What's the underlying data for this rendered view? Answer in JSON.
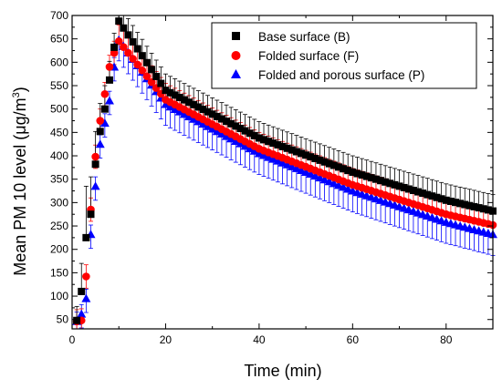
{
  "chart_data": {
    "type": "scatter",
    "xlabel": "Time (min)",
    "ylabel_prefix": "Mean PM 10 level (",
    "ylabel_mu": "μ",
    "ylabel_unit_mid": "g/m",
    "ylabel_sup": "3",
    "ylabel_suffix": ")",
    "xlim": [
      0,
      90
    ],
    "ylim": [
      30,
      700
    ],
    "x_ticks": [
      "0",
      "20",
      "40",
      "60",
      "80"
    ],
    "y_ticks": [
      "50",
      "100",
      "150",
      "200",
      "250",
      "300",
      "350",
      "400",
      "450",
      "500",
      "550",
      "600",
      "650",
      "700"
    ],
    "grid": false,
    "legend_position": "top-right",
    "series": [
      {
        "name": "Base surface (B)",
        "marker": "square",
        "color": "#000000",
        "peak": {
          "x": 10,
          "y": 688
        },
        "rise": [
          [
            1,
            48
          ],
          [
            2,
            110
          ],
          [
            3,
            225
          ],
          [
            4,
            275
          ],
          [
            5,
            382
          ],
          [
            6,
            452
          ],
          [
            7,
            500
          ],
          [
            8,
            562
          ],
          [
            9,
            632
          ]
        ],
        "decay_end": {
          "x": 90,
          "y": 282
        },
        "decay_points": [
          [
            10,
            688
          ],
          [
            20,
            540
          ],
          [
            40,
            438
          ],
          [
            60,
            365
          ],
          [
            80,
            305
          ],
          [
            90,
            282
          ]
        ],
        "error_up": [
          30,
          60,
          110,
          80,
          70,
          60,
          50,
          40,
          30,
          30
        ],
        "error_tail": 35
      },
      {
        "name": "Folded surface (F)",
        "marker": "circle",
        "color": "#ff0000",
        "peak": {
          "x": 10,
          "y": 645
        },
        "rise": [
          [
            1,
            46
          ],
          [
            2,
            48
          ],
          [
            3,
            142
          ],
          [
            4,
            285
          ],
          [
            5,
            398
          ],
          [
            6,
            475
          ],
          [
            7,
            532
          ],
          [
            8,
            590
          ],
          [
            9,
            620
          ]
        ],
        "decay_end": {
          "x": 90,
          "y": 252
        },
        "decay_points": [
          [
            10,
            645
          ],
          [
            20,
            520
          ],
          [
            40,
            415
          ],
          [
            60,
            338
          ],
          [
            80,
            275
          ],
          [
            90,
            252
          ]
        ],
        "error_tail": 35
      },
      {
        "name": "Folded and porous surface (P)",
        "marker": "triangle",
        "color": "#0000ff",
        "peak": {
          "x": 10,
          "y": 648
        },
        "rise": [
          [
            1,
            46
          ],
          [
            2,
            62
          ],
          [
            3,
            95
          ],
          [
            4,
            232
          ],
          [
            5,
            335
          ],
          [
            6,
            425
          ],
          [
            7,
            470
          ],
          [
            8,
            518
          ],
          [
            9,
            590
          ]
        ],
        "decay_end": {
          "x": 90,
          "y": 232
        },
        "decay_points": [
          [
            10,
            648
          ],
          [
            20,
            510
          ],
          [
            40,
            405
          ],
          [
            60,
            325
          ],
          [
            80,
            258
          ],
          [
            90,
            232
          ]
        ],
        "error_down_tail": 45
      }
    ]
  }
}
